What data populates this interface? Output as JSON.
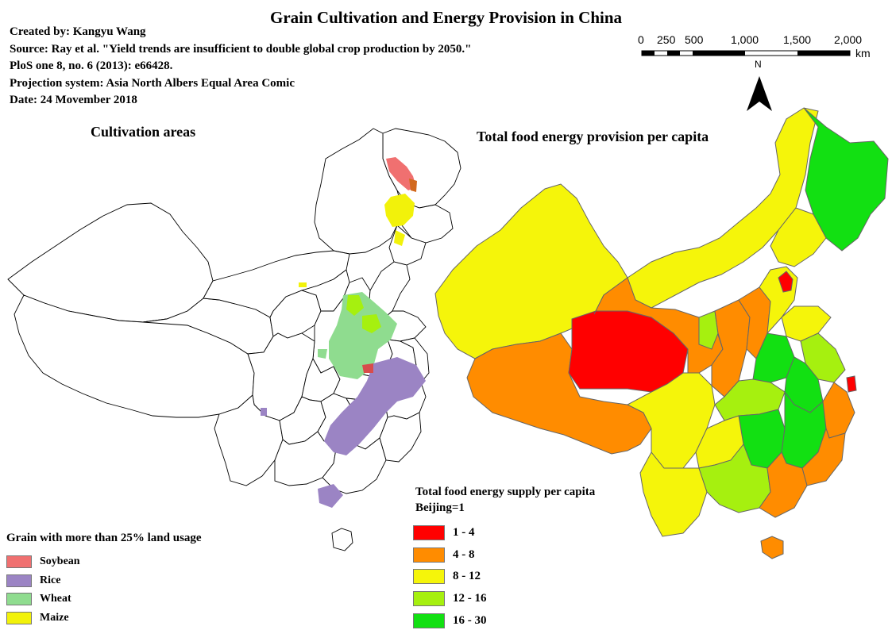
{
  "title": "Grain Cultivation and Energy Provision in China",
  "meta": {
    "created_by": "Created by: Kangyu Wang",
    "source": "Source: Ray et al. \"Yield trends are insufficient to double global crop production by 2050.\"",
    "citation": "PloS one 8, no. 6 (2013): e66428.",
    "projection": "Projection system: Asia North Albers Equal Area Comic",
    "date": "Date: 24 Movember 2018"
  },
  "maps": {
    "left_title": "Cultivation areas",
    "right_title": "Total food energy provision per capita"
  },
  "scale_bar": {
    "labels": [
      "0",
      "250",
      "500",
      "1,000",
      "1,500",
      "2,000"
    ],
    "unit": "km",
    "north_label": "N"
  },
  "grain_legend": {
    "title": "Grain with more than 25% land usage",
    "items": [
      {
        "label": "Soybean",
        "color": "#f07070"
      },
      {
        "label": "Rice",
        "color": "#9b84c4"
      },
      {
        "label": "Wheat",
        "color": "#8fdc8f"
      },
      {
        "label": "Maize",
        "color": "#f2f20a"
      }
    ]
  },
  "energy_legend": {
    "title": "Total food energy supply per capita",
    "subtitle": "Beijing=1",
    "items": [
      {
        "label": "1 - 4",
        "color": "#ff0000"
      },
      {
        "label": "4 - 8",
        "color": "#ff8c00"
      },
      {
        "label": "8 - 12",
        "color": "#f5f50a"
      },
      {
        "label": "12 - 16",
        "color": "#a6f00f"
      },
      {
        "label": "16 - 30",
        "color": "#12e012"
      }
    ]
  }
}
